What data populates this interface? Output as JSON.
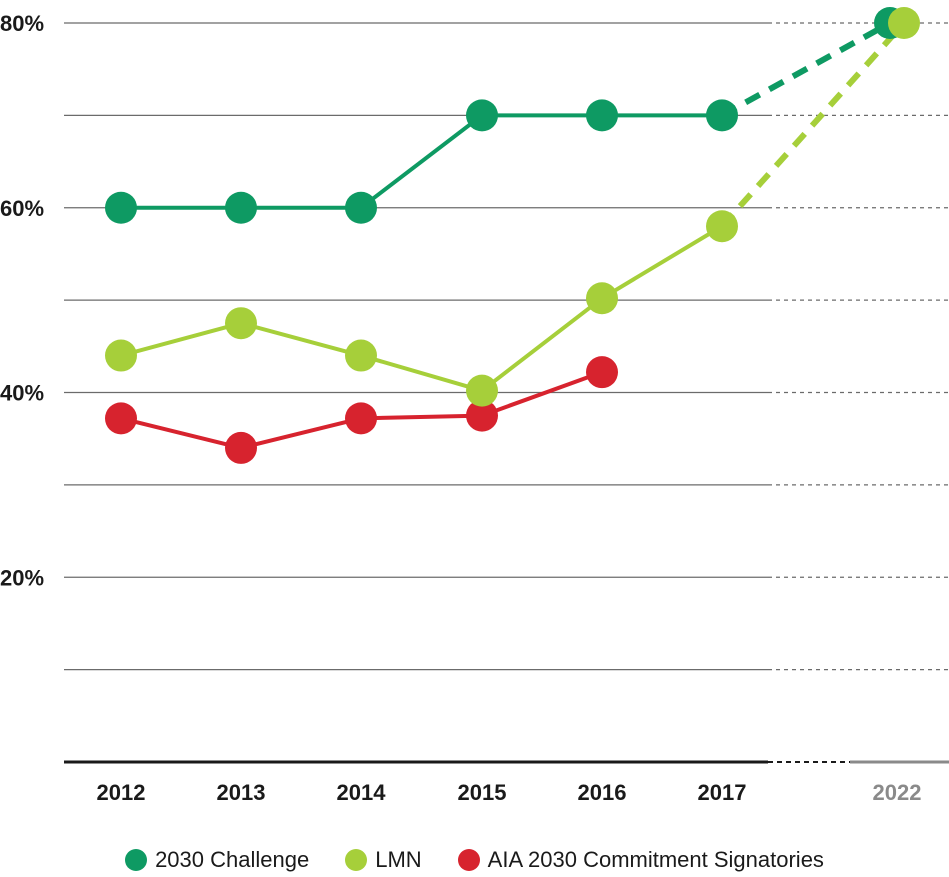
{
  "chart_data": {
    "type": "line",
    "categories": [
      "2012",
      "2013",
      "2014",
      "2015",
      "2016",
      "2017",
      "2022"
    ],
    "y_ticks": [
      20,
      40,
      60,
      80
    ],
    "y_tick_labels": [
      "20%",
      "40%",
      "60%",
      "80%"
    ],
    "ylim": [
      0,
      80
    ],
    "grid": true,
    "legend_position": "bottom",
    "series": [
      {
        "name": "2030 Challenge",
        "color": "#0e9a63",
        "values": [
          60,
          60,
          60,
          70,
          70,
          70,
          80
        ],
        "projected_from_index": 5
      },
      {
        "name": "LMN",
        "color": "#a6cf3a",
        "values": [
          44,
          47.5,
          44,
          40.2,
          50.2,
          58,
          80
        ],
        "projected_from_index": 5
      },
      {
        "name": "AIA 2030 Commitment Signatories",
        "color": "#d7232e",
        "values": [
          37.2,
          34,
          37.2,
          37.5,
          42.2,
          null,
          null
        ]
      }
    ]
  }
}
